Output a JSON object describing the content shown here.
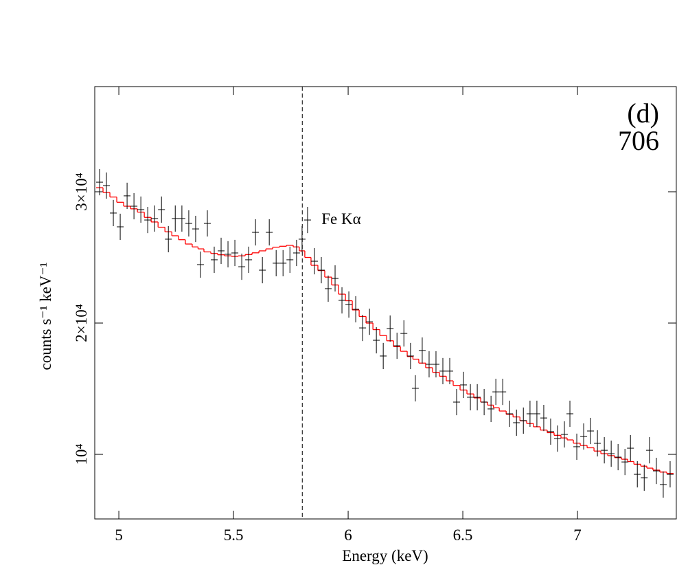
{
  "chart_data": {
    "type": "errorbar",
    "x_label": "Energy (keV)",
    "y_label": "counts s⁻¹ keV⁻¹",
    "panel_label": "(d)",
    "panel_number": "706",
    "line_label": "Fe Kα",
    "line_energy": 5.8,
    "xlim": [
      4.895,
      7.431
    ],
    "ylim": [
      5080,
      38010
    ],
    "xticks": [
      5,
      5.5,
      6,
      6.5,
      7
    ],
    "yticks": [
      {
        "value": 10000,
        "label": "10⁴"
      },
      {
        "value": 20000,
        "label": "2×10⁴"
      },
      {
        "value": 30000,
        "label": "3×10⁴"
      }
    ],
    "x": [
      4.916,
      4.946,
      4.976,
      5.006,
      5.036,
      5.066,
      5.096,
      5.126,
      5.156,
      5.186,
      5.216,
      5.246,
      5.275,
      5.305,
      5.335,
      5.356,
      5.386,
      5.416,
      5.446,
      5.476,
      5.506,
      5.536,
      5.566,
      5.596,
      5.626,
      5.656,
      5.686,
      5.716,
      5.746,
      5.775,
      5.799,
      5.823,
      5.853,
      5.883,
      5.913,
      5.943,
      5.973,
      6.003,
      6.033,
      6.063,
      6.093,
      6.123,
      6.153,
      6.183,
      6.213,
      6.243,
      6.272,
      6.293,
      6.323,
      6.353,
      6.383,
      6.413,
      6.443,
      6.473,
      6.503,
      6.533,
      6.563,
      6.593,
      6.623,
      6.644,
      6.674,
      6.704,
      6.734,
      6.764,
      6.793,
      6.823,
      6.853,
      6.883,
      6.913,
      6.943,
      6.967,
      6.997,
      7.027,
      7.057,
      7.087,
      7.117,
      7.147,
      7.177,
      7.207,
      7.231,
      7.261,
      7.291,
      7.314,
      7.344,
      7.374,
      7.404
    ],
    "series": [
      {
        "color": "#000000",
        "xerr": 0.015,
        "yerr": 1000,
        "values": [
          30730,
          30470,
          28380,
          27330,
          29690,
          28900,
          28640,
          27850,
          27960,
          28640,
          26390,
          27960,
          27960,
          27590,
          27170,
          24450,
          27590,
          24820,
          25500,
          25240,
          25340,
          24290,
          24820,
          26910,
          24030,
          26910,
          24560,
          24560,
          24820,
          25340,
          26390,
          27850,
          24710,
          24030,
          22620,
          23400,
          21730,
          21410,
          21050,
          19630,
          20100,
          18690,
          17490,
          19580,
          18270,
          19210,
          17490,
          15030,
          17910,
          16860,
          16860,
          16340,
          16340,
          13980,
          15290,
          14350,
          14350,
          13980,
          13460,
          14760,
          14760,
          13090,
          12410,
          12570,
          13090,
          13090,
          12770,
          11730,
          11200,
          11520,
          13090,
          10580,
          11360,
          11780,
          10840,
          10310,
          10050,
          9790,
          9420,
          10470,
          8480,
          8220,
          10310,
          8740,
          7700,
          8480
        ]
      },
      {
        "color": "#ff0000",
        "values": [
          30310,
          29950,
          29600,
          29200,
          28900,
          28700,
          28450,
          28050,
          27700,
          27300,
          26950,
          26650,
          26350,
          26020,
          25800,
          25650,
          25420,
          25300,
          25200,
          25120,
          25080,
          25120,
          25220,
          25350,
          25500,
          25650,
          25780,
          25850,
          25920,
          25800,
          25500,
          25000,
          24400,
          24000,
          23500,
          22900,
          22200,
          21700,
          21000,
          20500,
          20000,
          19500,
          19050,
          18650,
          18200,
          17850,
          17450,
          17250,
          16950,
          16600,
          16250,
          15950,
          15600,
          15250,
          14900,
          14600,
          14300,
          13980,
          13750,
          13550,
          13300,
          13050,
          12850,
          12550,
          12350,
          12100,
          11850,
          11650,
          11450,
          11250,
          11100,
          10850,
          10680,
          10500,
          10250,
          10050,
          9900,
          9750,
          9630,
          9450,
          9250,
          9100,
          8950,
          8800,
          8650,
          8550
        ]
      }
    ]
  }
}
